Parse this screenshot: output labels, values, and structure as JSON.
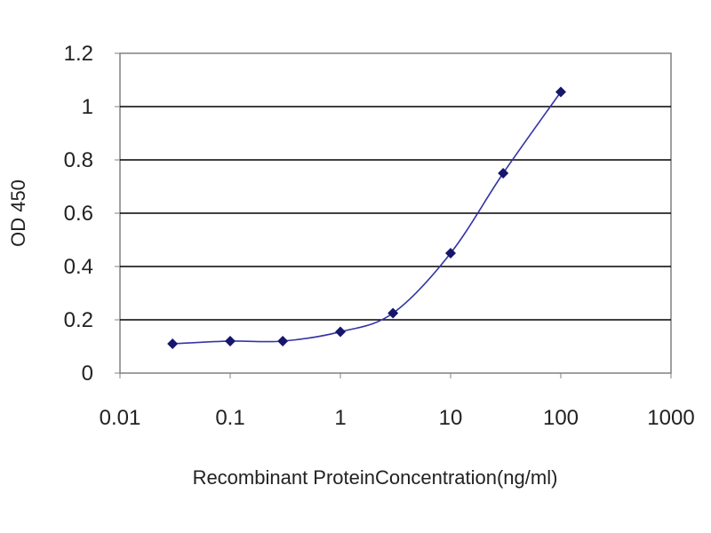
{
  "chart_data": {
    "type": "line",
    "xlabel": "Recombinant ProteinConcentration(ng/ml)",
    "ylabel": "OD 450",
    "x_scale": "log",
    "xlim": [
      0.01,
      1000
    ],
    "ylim": [
      0,
      1.2
    ],
    "x_ticks": [
      "0.01",
      "0.1",
      "1",
      "10",
      "100",
      "1000"
    ],
    "y_ticks": [
      "0",
      "0.2",
      "0.4",
      "0.6",
      "0.8",
      "1",
      "1.2"
    ],
    "grid": "horizontal",
    "series": [
      {
        "x": [
          0.03,
          0.1,
          0.3,
          1,
          3,
          10,
          30,
          100
        ],
        "y": [
          0.11,
          0.12,
          0.12,
          0.155,
          0.225,
          0.45,
          0.75,
          1.055
        ]
      }
    ],
    "colors": {
      "line": "#3535a5",
      "marker": "#16166e",
      "grid": "#000000",
      "frame": "#808080",
      "background": "#ffffff"
    }
  }
}
